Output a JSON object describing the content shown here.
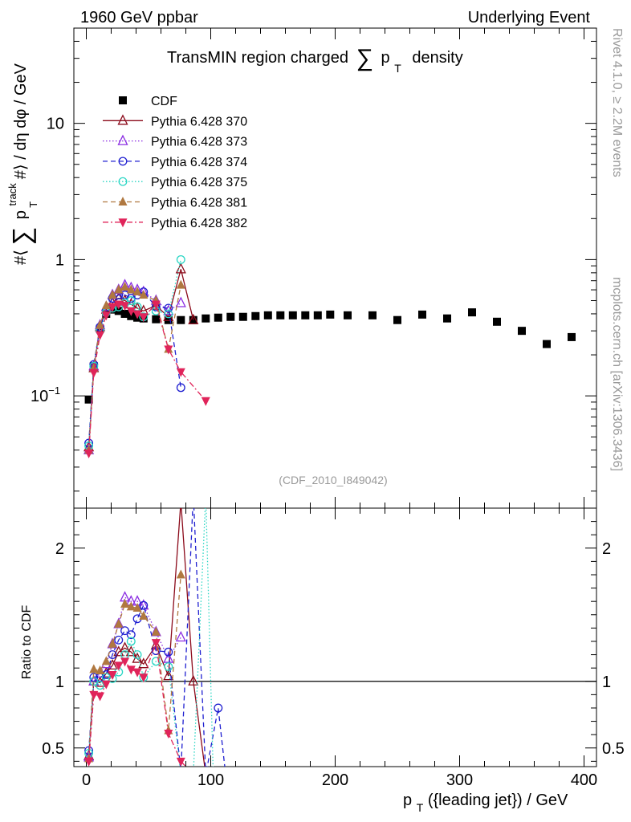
{
  "header": {
    "left": "1960 GeV ppbar",
    "right": "Underlying Event"
  },
  "side_labels": {
    "rivet": "Rivet 4.1.0, ≥ 2.2M events",
    "mcplots": "mcplots.cern.ch [arXiv:1306.3436]"
  },
  "colors": {
    "CDF": "#000000",
    "Pythia 6.428 370": "#8b0a1a",
    "Pythia 6.428 373": "#8a2be2",
    "Pythia 6.428 374": "#1f1fd0",
    "Pythia 6.428 375": "#2ad6c4",
    "Pythia 6.428 381": "#b07840",
    "Pythia 6.428 382": "#e0245a",
    "watermark": "#999999"
  },
  "chart_data": [
    {
      "panel": "main",
      "type": "scatter",
      "title": "TransMIN region charged ∑ p_T density",
      "title_parts": {
        "pre": "TransMIN region charged",
        "sym": "∑",
        "pt": "p",
        "sub": "T",
        "post": "density"
      },
      "ylabel": "#⟨ ∑ p_T^track #⟩ / dη dφ / GeV",
      "ylabel_parts": {
        "a": "#⟨",
        "sym": "∑",
        "p": "p",
        "sup": "track",
        "sub": "T",
        "b": "#⟩ / dη dφ / GeV"
      },
      "yscale": "log",
      "ylim": [
        0.015,
        50
      ],
      "xlim": [
        -10,
        410
      ],
      "yticks": [
        {
          "v": 0.1,
          "label": "10",
          "exp": "−1"
        },
        {
          "v": 1,
          "label": "1",
          "exp": ""
        },
        {
          "v": 10,
          "label": "10",
          "exp": ""
        }
      ],
      "watermark": "(CDF_2010_I849042)",
      "legend_position": "top-left",
      "legend": [
        "CDF",
        "Pythia 6.428 370",
        "Pythia 6.428 373",
        "Pythia 6.428 374",
        "Pythia 6.428 375",
        "Pythia 6.428 381",
        "Pythia 6.428 382"
      ],
      "series": [
        {
          "name": "CDF",
          "marker": "square",
          "style": "none",
          "x": [
            2,
            6,
            11,
            16,
            21,
            26,
            31,
            36,
            41,
            46,
            56,
            66,
            76,
            86,
            96,
            106,
            116,
            126,
            136,
            146,
            156,
            166,
            176,
            186,
            196,
            210,
            230,
            250,
            270,
            290,
            310,
            330,
            350,
            370,
            390
          ],
          "y": [
            0.094,
            0.165,
            0.31,
            0.4,
            0.43,
            0.42,
            0.4,
            0.385,
            0.375,
            0.37,
            0.365,
            0.36,
            0.36,
            0.36,
            0.37,
            0.375,
            0.38,
            0.38,
            0.385,
            0.39,
            0.39,
            0.39,
            0.39,
            0.39,
            0.395,
            0.39,
            0.39,
            0.36,
            0.395,
            0.37,
            0.41,
            0.35,
            0.3,
            0.24,
            0.27
          ]
        },
        {
          "name": "Pythia 6.428 370",
          "marker": "triangle-up-open",
          "style": "solid",
          "x": [
            2,
            6,
            11,
            16,
            21,
            26,
            31,
            36,
            41,
            46,
            56,
            66,
            76,
            86
          ],
          "y": [
            0.042,
            0.16,
            0.32,
            0.43,
            0.48,
            0.52,
            0.5,
            0.47,
            0.44,
            0.42,
            0.46,
            0.38,
            0.85,
            0.36
          ]
        },
        {
          "name": "Pythia 6.428 373",
          "marker": "triangle-up-open",
          "style": "dotted",
          "x": [
            2,
            6,
            11,
            16,
            21,
            26,
            31,
            36,
            41,
            46,
            56,
            66,
            76
          ],
          "y": [
            0.04,
            0.165,
            0.33,
            0.45,
            0.55,
            0.6,
            0.65,
            0.62,
            0.6,
            0.58,
            0.5,
            0.42,
            0.48
          ]
        },
        {
          "name": "Pythia 6.428 374",
          "marker": "circle-open",
          "style": "dashed",
          "x": [
            2,
            6,
            11,
            16,
            21,
            26,
            31,
            36,
            41,
            46,
            56,
            66,
            76
          ],
          "y": [
            0.045,
            0.17,
            0.32,
            0.42,
            0.52,
            0.55,
            0.55,
            0.52,
            0.55,
            0.58,
            0.45,
            0.44,
            0.115
          ]
        },
        {
          "name": "Pythia 6.428 375",
          "marker": "circle-open",
          "style": "dotted",
          "x": [
            2,
            6,
            11,
            16,
            21,
            26,
            31,
            36,
            41,
            46,
            56,
            66,
            76
          ],
          "y": [
            0.043,
            0.165,
            0.3,
            0.41,
            0.44,
            0.45,
            0.48,
            0.5,
            0.45,
            0.38,
            0.42,
            0.4,
            1.0
          ]
        },
        {
          "name": "Pythia 6.428 381",
          "marker": "triangle-up-filled",
          "style": "dashed",
          "x": [
            2,
            6,
            11,
            16,
            21,
            26,
            31,
            36,
            41,
            46,
            56,
            66,
            76
          ],
          "y": [
            0.04,
            0.16,
            0.33,
            0.46,
            0.55,
            0.6,
            0.63,
            0.6,
            0.58,
            0.55,
            0.5,
            0.22,
            0.65
          ]
        },
        {
          "name": "Pythia 6.428 382",
          "marker": "triangle-down-filled",
          "style": "dashdot",
          "x": [
            2,
            6,
            11,
            16,
            21,
            26,
            31,
            36,
            41,
            46,
            56,
            66,
            76,
            96
          ],
          "y": [
            0.038,
            0.148,
            0.28,
            0.39,
            0.45,
            0.47,
            0.46,
            0.42,
            0.4,
            0.38,
            0.47,
            0.22,
            0.15,
            0.092
          ]
        }
      ]
    },
    {
      "panel": "ratio",
      "type": "line",
      "xlabel": "p_T({leading jet}) / GeV",
      "xlabel_parts": {
        "p": "p",
        "sub": "T",
        "rest": "({leading jet}) / GeV"
      },
      "ylabel": "Ratio to CDF",
      "ylim": [
        0.36,
        2.3
      ],
      "xlim": [
        -10,
        410
      ],
      "reference_line": 1,
      "yticks": [
        0.5,
        1,
        2
      ],
      "xticks": [
        0,
        100,
        200,
        300,
        400
      ],
      "series": [
        {
          "name": "Pythia 6.428 370",
          "x": [
            2,
            6,
            11,
            16,
            21,
            26,
            31,
            36,
            41,
            46,
            56,
            66,
            76,
            86,
            96
          ],
          "y": [
            0.44,
            1.0,
            0.99,
            1.06,
            1.12,
            1.22,
            1.25,
            1.22,
            1.17,
            1.13,
            1.27,
            1.04,
            2.35,
            1.0,
            0.3
          ]
        },
        {
          "name": "Pythia 6.428 373",
          "x": [
            2,
            6,
            11,
            16,
            21,
            26,
            31,
            36,
            41,
            46,
            56,
            66,
            76
          ],
          "y": [
            0.43,
            1.0,
            1.06,
            1.13,
            1.28,
            1.43,
            1.63,
            1.6,
            1.6,
            1.57,
            1.37,
            1.17,
            1.33
          ]
        },
        {
          "name": "Pythia 6.428 374",
          "x": [
            2,
            6,
            11,
            16,
            21,
            26,
            31,
            36,
            41,
            46,
            56,
            66,
            76,
            86,
            96,
            106,
            112
          ],
          "y": [
            0.48,
            1.03,
            1.03,
            1.05,
            1.2,
            1.31,
            1.38,
            1.35,
            1.47,
            1.57,
            1.23,
            1.22,
            0.32,
            2.4,
            0.3,
            0.8,
            0.3
          ]
        },
        {
          "name": "Pythia 6.428 375",
          "x": [
            2,
            6,
            11,
            16,
            21,
            26,
            31,
            36,
            41,
            46,
            56,
            66,
            76,
            86,
            96,
            102
          ],
          "y": [
            0.46,
            1.0,
            0.97,
            1.03,
            1.02,
            1.07,
            1.2,
            1.3,
            1.2,
            1.03,
            1.15,
            1.11,
            0.3,
            0.3,
            2.4,
            0.3
          ]
        },
        {
          "name": "Pythia 6.428 381",
          "x": [
            2,
            6,
            11,
            16,
            21,
            26,
            31,
            36,
            41,
            46,
            56,
            66,
            76
          ],
          "y": [
            0.42,
            1.09,
            1.08,
            1.15,
            1.28,
            1.43,
            1.58,
            1.56,
            1.55,
            1.49,
            1.37,
            0.63,
            1.8
          ]
        },
        {
          "name": "Pythia 6.428 382",
          "x": [
            2,
            6,
            11,
            16,
            21,
            26,
            31,
            36,
            41,
            46,
            56,
            66,
            76,
            86
          ],
          "y": [
            0.4,
            0.9,
            0.89,
            0.98,
            1.05,
            1.12,
            1.15,
            1.09,
            1.07,
            1.03,
            1.29,
            0.61,
            0.4,
            0.3
          ]
        }
      ]
    }
  ]
}
